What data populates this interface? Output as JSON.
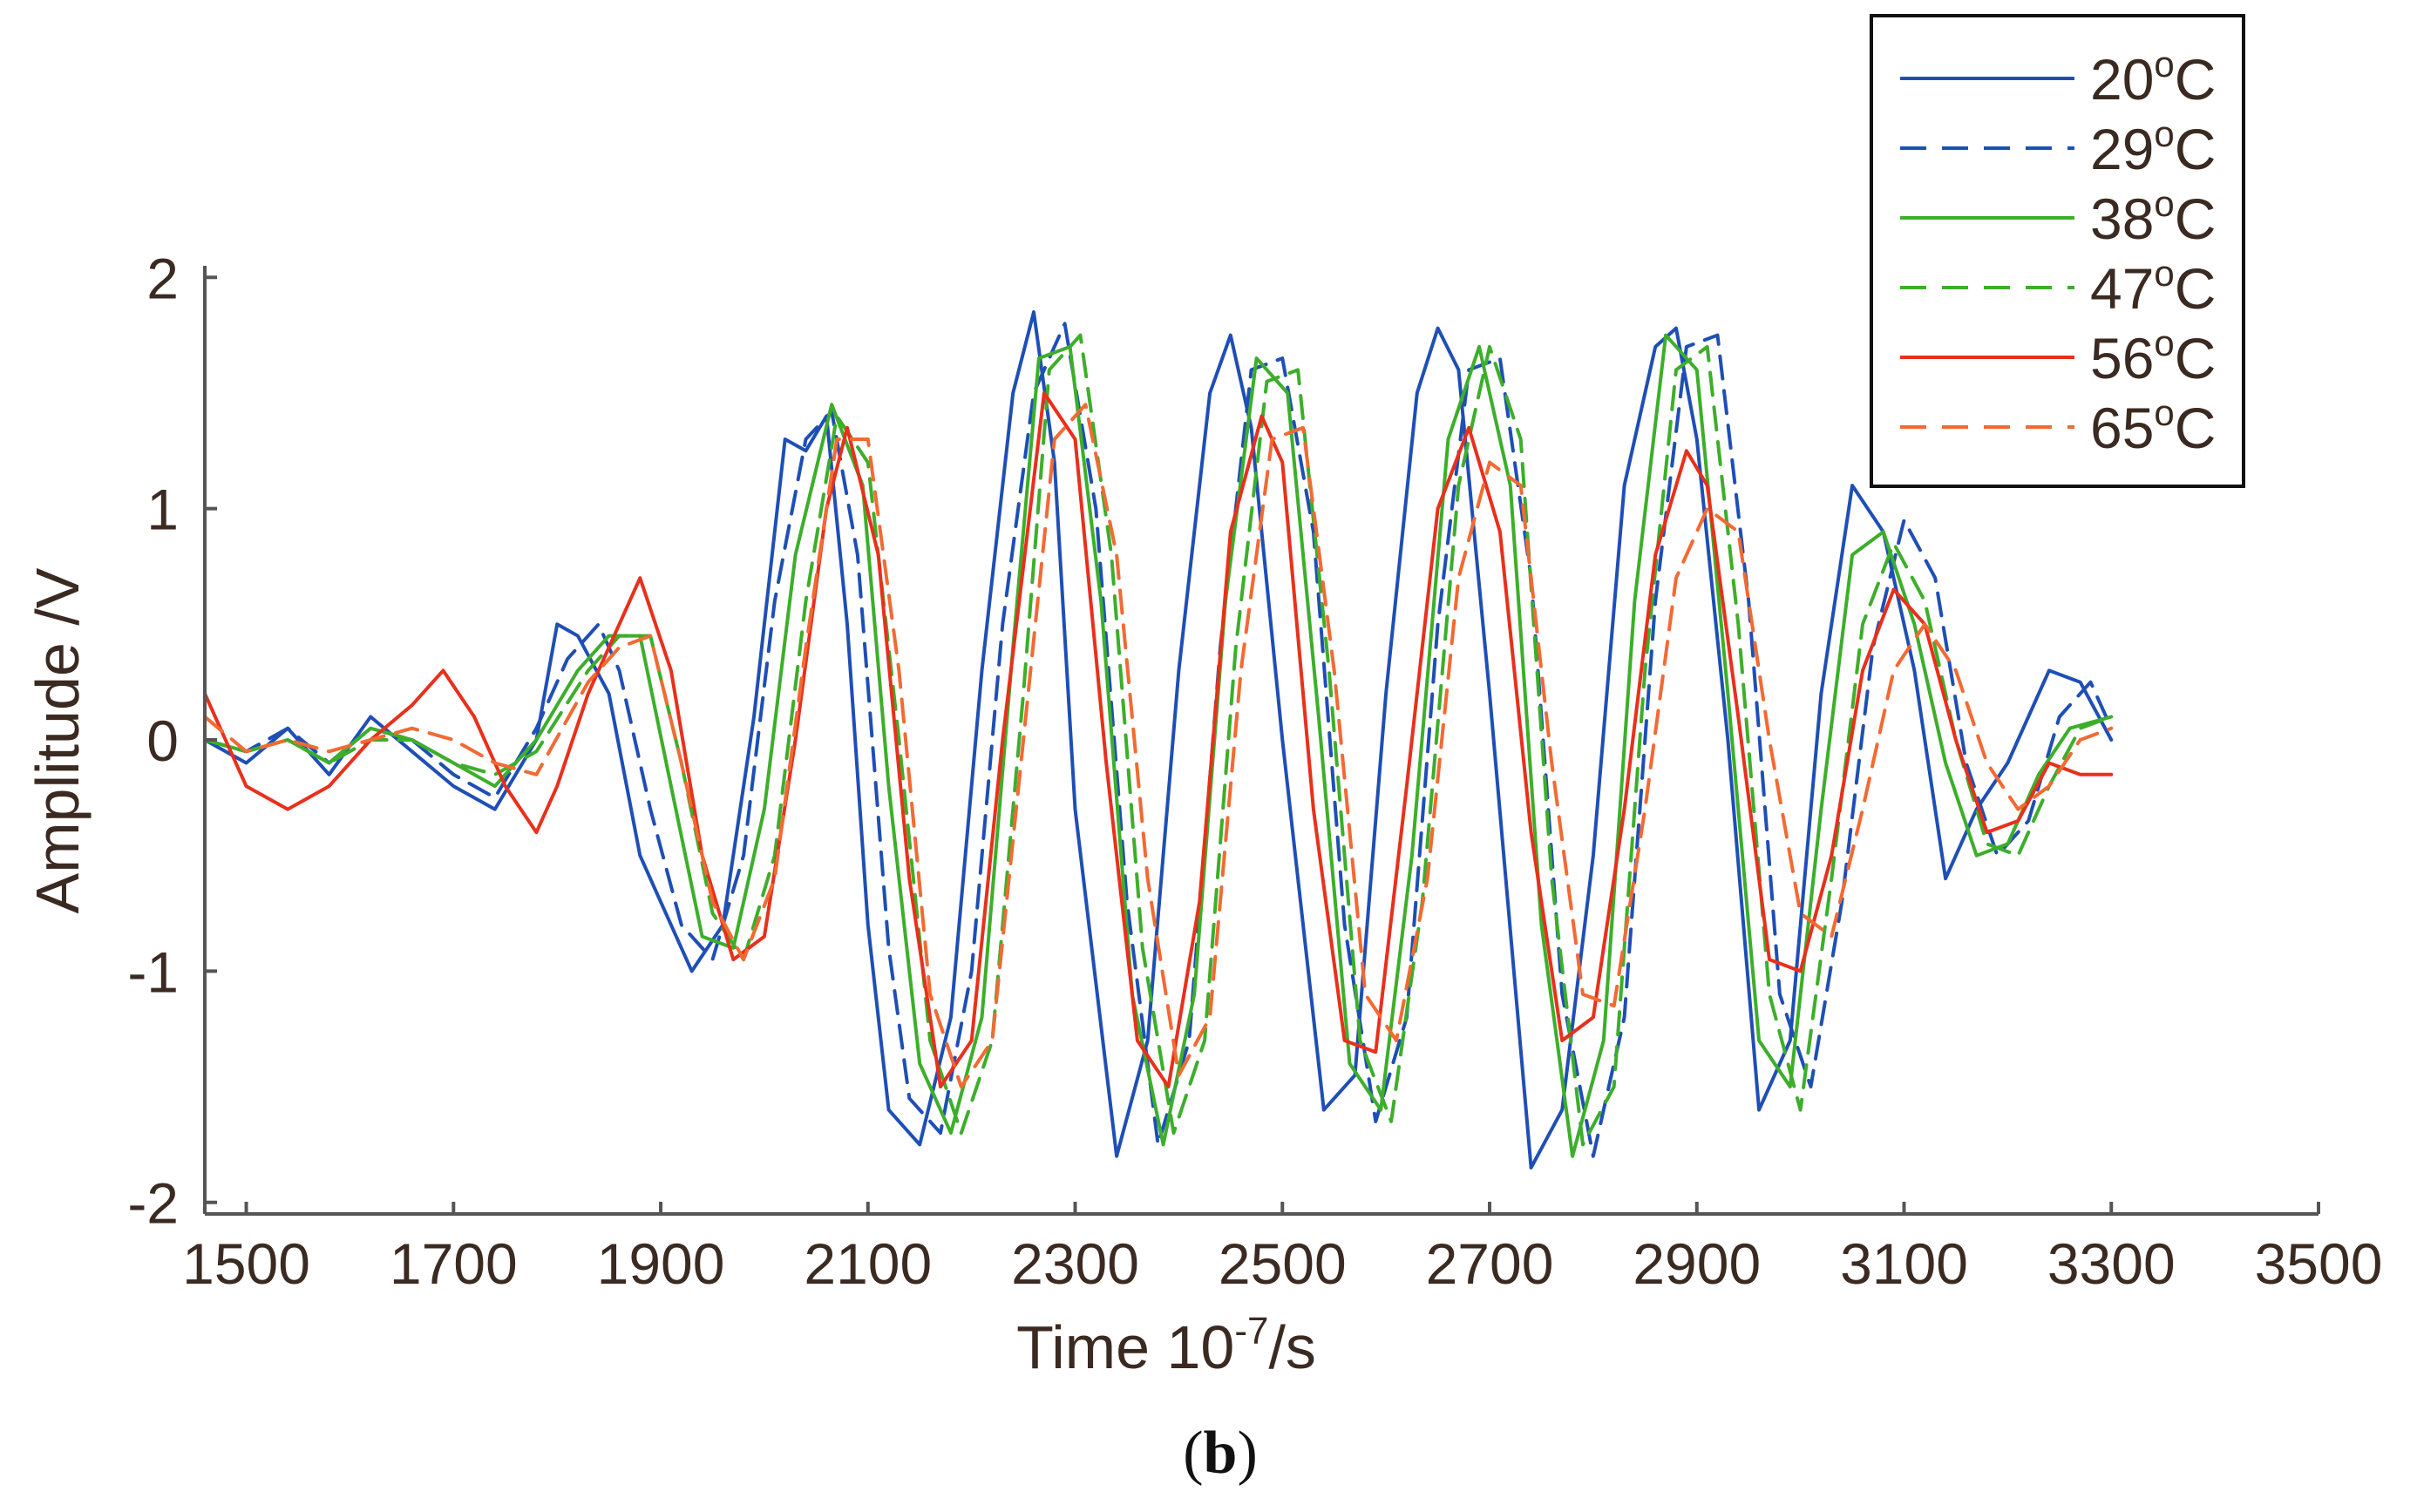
{
  "chart_data": {
    "type": "line",
    "title": "",
    "xlabel": "Time 10",
    "xlabel_superscript": "-7",
    "xlabel_suffix": "/s",
    "ylabel": "Amplitude /V",
    "xlim": [
      1460,
      3500
    ],
    "ylim": [
      -2.05,
      2.05
    ],
    "x_ticks": [
      1500,
      1700,
      1900,
      2100,
      2300,
      2500,
      2700,
      2900,
      3100,
      3300,
      3500
    ],
    "x_tick_labels": [
      "1500",
      "1700",
      "1900",
      "2100",
      "2300",
      "2500",
      "2700",
      "2900",
      "3100",
      "3300",
      "3500"
    ],
    "y_ticks": [
      2,
      1,
      0,
      -1,
      -2
    ],
    "y_tick_labels": [
      "2",
      "1",
      "0",
      "-1",
      "-2"
    ],
    "grid": false,
    "legend_position": "top-right",
    "caption": "(b)",
    "caption_letter": "b",
    "series": [
      {
        "name": "20°C",
        "name_base": "20",
        "name_sup": "o",
        "name_unit": "C",
        "color": "#1f4fb5",
        "dashed": false,
        "x": [
          1460,
          1500,
          1540,
          1580,
          1620,
          1660,
          1700,
          1740,
          1780,
          1800,
          1820,
          1850,
          1880,
          1900,
          1930,
          1960,
          1990,
          2020,
          2040,
          2060,
          2080,
          2100,
          2120,
          2150,
          2180,
          2210,
          2240,
          2260,
          2280,
          2300,
          2340,
          2370,
          2400,
          2430,
          2450,
          2470,
          2500,
          2540,
          2570,
          2600,
          2630,
          2650,
          2670,
          2700,
          2740,
          2770,
          2800,
          2830,
          2860,
          2880,
          2900,
          2930,
          2960,
          2990,
          3020,
          3050,
          3080,
          3110,
          3140,
          3170,
          3200,
          3240,
          3270,
          3300
        ],
        "y": [
          0.0,
          -0.1,
          0.05,
          -0.15,
          0.1,
          -0.05,
          -0.2,
          -0.3,
          0.0,
          0.5,
          0.45,
          0.2,
          -0.5,
          -0.7,
          -1.0,
          -0.8,
          0.1,
          1.3,
          1.25,
          1.4,
          0.5,
          -0.8,
          -1.6,
          -1.75,
          -1.2,
          0.3,
          1.5,
          1.85,
          1.2,
          -0.3,
          -1.8,
          -1.3,
          0.3,
          1.5,
          1.75,
          1.35,
          0.0,
          -1.6,
          -1.45,
          0.2,
          1.5,
          1.78,
          1.6,
          0.2,
          -1.85,
          -1.6,
          -0.5,
          1.1,
          1.7,
          1.78,
          1.3,
          0.0,
          -1.6,
          -1.3,
          0.2,
          1.1,
          0.9,
          0.3,
          -0.6,
          -0.3,
          -0.1,
          0.3,
          0.25,
          0.0
        ]
      },
      {
        "name": "29°C",
        "name_base": "29",
        "name_sup": "o",
        "name_unit": "C",
        "color": "#1f4fb5",
        "dashed": true,
        "x": [
          1460,
          1500,
          1540,
          1580,
          1620,
          1660,
          1700,
          1740,
          1780,
          1810,
          1840,
          1860,
          1890,
          1920,
          1950,
          1980,
          2010,
          2040,
          2065,
          2090,
          2120,
          2140,
          2170,
          2200,
          2230,
          2260,
          2290,
          2320,
          2350,
          2380,
          2410,
          2440,
          2470,
          2500,
          2530,
          2560,
          2590,
          2620,
          2650,
          2680,
          2710,
          2740,
          2770,
          2800,
          2830,
          2860,
          2890,
          2920,
          2950,
          2980,
          3010,
          3040,
          3070,
          3100,
          3130,
          3160,
          3190,
          3220,
          3250,
          3280,
          3300
        ],
        "y": [
          0.0,
          -0.05,
          0.05,
          -0.1,
          0.05,
          0.0,
          -0.15,
          -0.25,
          0.05,
          0.35,
          0.5,
          0.3,
          -0.3,
          -0.8,
          -0.95,
          -0.5,
          0.6,
          1.3,
          1.42,
          0.8,
          -0.9,
          -1.55,
          -1.7,
          -1.0,
          0.5,
          1.5,
          1.8,
          1.0,
          -0.7,
          -1.75,
          -1.3,
          0.4,
          1.6,
          1.65,
          0.9,
          -0.8,
          -1.65,
          -1.2,
          0.5,
          1.6,
          1.65,
          0.7,
          -1.1,
          -1.8,
          -1.2,
          0.6,
          1.7,
          1.75,
          0.6,
          -1.1,
          -1.5,
          -0.7,
          0.4,
          0.95,
          0.7,
          -0.1,
          -0.5,
          -0.35,
          0.1,
          0.25,
          0.05
        ]
      },
      {
        "name": "38°C",
        "name_base": "38",
        "name_sup": "o",
        "name_unit": "C",
        "color": "#3dae2b",
        "dashed": false,
        "x": [
          1460,
          1500,
          1540,
          1580,
          1620,
          1660,
          1700,
          1740,
          1780,
          1820,
          1850,
          1880,
          1910,
          1940,
          1970,
          2000,
          2030,
          2065,
          2095,
          2120,
          2150,
          2180,
          2210,
          2240,
          2265,
          2295,
          2325,
          2355,
          2385,
          2415,
          2445,
          2475,
          2505,
          2535,
          2565,
          2595,
          2625,
          2660,
          2690,
          2720,
          2750,
          2780,
          2810,
          2840,
          2870,
          2900,
          2930,
          2960,
          2990,
          3020,
          3050,
          3080,
          3110,
          3140,
          3170,
          3200,
          3230,
          3260,
          3300
        ],
        "y": [
          0.0,
          -0.05,
          0.0,
          -0.1,
          0.05,
          0.0,
          -0.1,
          -0.2,
          0.0,
          0.3,
          0.45,
          0.45,
          -0.2,
          -0.85,
          -0.9,
          -0.3,
          0.8,
          1.45,
          1.1,
          -0.2,
          -1.4,
          -1.7,
          -1.2,
          0.4,
          1.65,
          1.7,
          0.6,
          -1.1,
          -1.75,
          -1.1,
          0.6,
          1.65,
          1.5,
          0.1,
          -1.4,
          -1.6,
          -0.5,
          1.3,
          1.7,
          1.1,
          -0.8,
          -1.8,
          -1.3,
          0.6,
          1.75,
          1.6,
          0.2,
          -1.3,
          -1.5,
          -0.3,
          0.8,
          0.9,
          0.5,
          -0.1,
          -0.5,
          -0.45,
          -0.15,
          0.05,
          0.1
        ]
      },
      {
        "name": "47°C",
        "name_base": "47",
        "name_sup": "o",
        "name_unit": "C",
        "color": "#3dae2b",
        "dashed": true,
        "x": [
          1460,
          1500,
          1540,
          1580,
          1620,
          1660,
          1700,
          1740,
          1780,
          1830,
          1860,
          1890,
          1920,
          1950,
          1980,
          2010,
          2040,
          2070,
          2100,
          2130,
          2160,
          2190,
          2220,
          2250,
          2275,
          2305,
          2335,
          2365,
          2395,
          2425,
          2455,
          2485,
          2515,
          2545,
          2575,
          2605,
          2635,
          2670,
          2700,
          2730,
          2760,
          2790,
          2820,
          2850,
          2880,
          2910,
          2940,
          2970,
          3000,
          3030,
          3060,
          3090,
          3120,
          3150,
          3180,
          3210,
          3240,
          3270,
          3300
        ],
        "y": [
          0.0,
          -0.05,
          0.0,
          -0.1,
          0.0,
          0.0,
          -0.1,
          -0.15,
          -0.05,
          0.3,
          0.45,
          0.45,
          -0.1,
          -0.75,
          -0.95,
          -0.5,
          0.6,
          1.4,
          1.2,
          0.0,
          -1.3,
          -1.7,
          -1.3,
          0.2,
          1.6,
          1.75,
          0.8,
          -0.9,
          -1.7,
          -1.3,
          0.4,
          1.55,
          1.6,
          0.3,
          -1.3,
          -1.65,
          -0.7,
          1.1,
          1.7,
          1.3,
          -0.6,
          -1.75,
          -1.5,
          0.3,
          1.6,
          1.7,
          0.5,
          -1.1,
          -1.6,
          -0.6,
          0.5,
          0.85,
          0.6,
          0.0,
          -0.45,
          -0.5,
          -0.2,
          0.05,
          0.1
        ]
      },
      {
        "name": "56°C",
        "name_base": "56",
        "name_sup": "o",
        "name_unit": "C",
        "color": "#e8301c",
        "dashed": false,
        "x": [
          1460,
          1500,
          1540,
          1580,
          1620,
          1660,
          1690,
          1720,
          1750,
          1780,
          1800,
          1830,
          1850,
          1880,
          1910,
          1940,
          1970,
          2000,
          2030,
          2060,
          2080,
          2110,
          2140,
          2170,
          2200,
          2230,
          2270,
          2300,
          2330,
          2360,
          2390,
          2420,
          2450,
          2480,
          2500,
          2530,
          2560,
          2590,
          2620,
          2650,
          2680,
          2710,
          2740,
          2770,
          2800,
          2830,
          2860,
          2890,
          2910,
          2940,
          2970,
          3000,
          3030,
          3060,
          3090,
          3120,
          3150,
          3180,
          3210,
          3240,
          3270,
          3300
        ],
        "y": [
          0.2,
          -0.2,
          -0.3,
          -0.2,
          0.0,
          0.15,
          0.3,
          0.1,
          -0.2,
          -0.4,
          -0.2,
          0.2,
          0.4,
          0.7,
          0.3,
          -0.5,
          -0.95,
          -0.85,
          0.0,
          1.0,
          1.35,
          0.8,
          -0.6,
          -1.5,
          -1.3,
          0.0,
          1.5,
          1.3,
          -0.1,
          -1.3,
          -1.5,
          -0.7,
          0.9,
          1.4,
          1.2,
          -0.3,
          -1.3,
          -1.35,
          -0.2,
          1.0,
          1.35,
          0.9,
          -0.4,
          -1.3,
          -1.2,
          -0.3,
          0.8,
          1.25,
          1.1,
          0.1,
          -0.95,
          -1.0,
          -0.5,
          0.3,
          0.65,
          0.5,
          0.0,
          -0.4,
          -0.35,
          -0.1,
          -0.15,
          -0.15
        ]
      },
      {
        "name": "65°C",
        "name_base": "65",
        "name_sup": "o",
        "name_unit": "C",
        "color": "#f26a33",
        "dashed": true,
        "x": [
          1460,
          1500,
          1540,
          1580,
          1620,
          1660,
          1700,
          1740,
          1780,
          1830,
          1860,
          1890,
          1920,
          1950,
          1980,
          2010,
          2040,
          2070,
          2100,
          2130,
          2160,
          2190,
          2220,
          2250,
          2280,
          2310,
          2340,
          2370,
          2400,
          2430,
          2460,
          2490,
          2520,
          2550,
          2580,
          2610,
          2640,
          2670,
          2700,
          2730,
          2760,
          2790,
          2820,
          2850,
          2880,
          2910,
          2940,
          2970,
          3000,
          3030,
          3060,
          3090,
          3120,
          3150,
          3180,
          3210,
          3240,
          3270,
          3300
        ],
        "y": [
          0.1,
          -0.05,
          0.0,
          -0.05,
          0.0,
          0.05,
          0.0,
          -0.1,
          -0.15,
          0.25,
          0.4,
          0.45,
          -0.1,
          -0.7,
          -0.95,
          -0.6,
          0.4,
          1.3,
          1.3,
          0.3,
          -1.1,
          -1.5,
          -1.3,
          0.0,
          1.3,
          1.45,
          0.8,
          -0.6,
          -1.45,
          -1.2,
          0.3,
          1.3,
          1.35,
          0.3,
          -1.1,
          -1.3,
          -0.6,
          0.7,
          1.2,
          1.1,
          -0.1,
          -1.1,
          -1.15,
          -0.3,
          0.7,
          1.0,
          0.9,
          0.0,
          -0.75,
          -0.85,
          -0.3,
          0.3,
          0.5,
          0.3,
          -0.1,
          -0.3,
          -0.2,
          0.0,
          0.05
        ]
      }
    ]
  }
}
